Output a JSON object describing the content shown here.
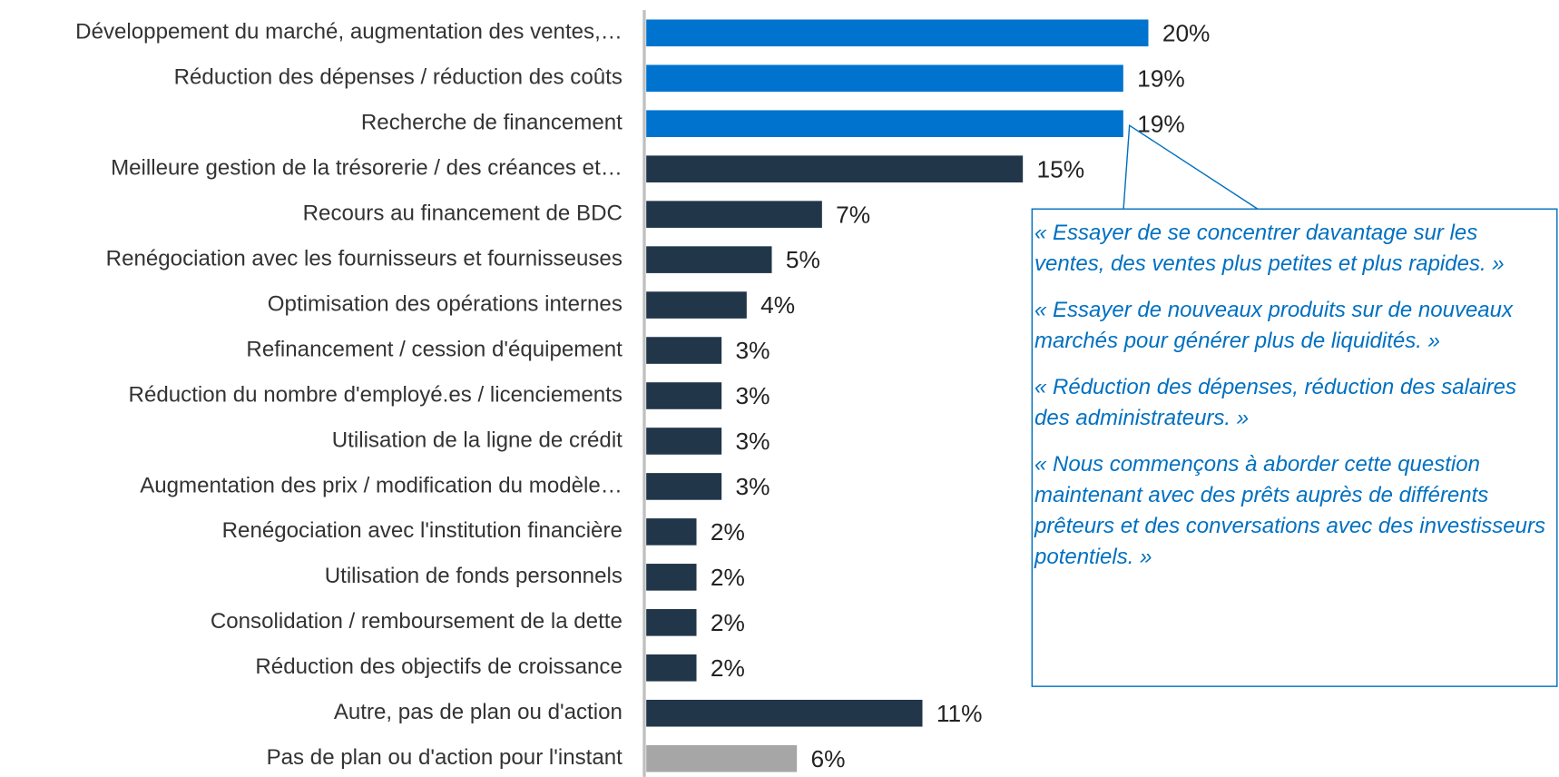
{
  "chart_data": {
    "type": "bar",
    "orientation": "horizontal",
    "categories": [
      "Développement du marché, augmentation des ventes,…",
      "Réduction des dépenses / réduction des coûts",
      "Recherche de financement",
      "Meilleure gestion de la trésorerie / des créances et…",
      "Recours au financement de BDC",
      "Renégociation avec les fournisseurs et fournisseuses",
      "Optimisation des opérations internes",
      "Refinancement / cession d'équipement",
      "Réduction du nombre d'employé.es / licenciements",
      "Utilisation de la ligne de crédit",
      "Augmentation des prix / modification du modèle…",
      "Renégociation avec l'institution financière",
      "Utilisation de fonds personnels",
      "Consolidation / remboursement de la dette",
      "Réduction des objectifs de croissance",
      "Autre, pas de plan ou d'action",
      "Pas de plan ou d'action pour l'instant"
    ],
    "values": [
      20,
      19,
      19,
      15,
      7,
      5,
      4,
      3,
      3,
      3,
      3,
      2,
      2,
      2,
      2,
      11,
      6
    ],
    "value_labels": [
      "20%",
      "19%",
      "19%",
      "15%",
      "7%",
      "5%",
      "4%",
      "3%",
      "3%",
      "3%",
      "3%",
      "2%",
      "2%",
      "2%",
      "2%",
      "11%",
      "6%"
    ],
    "colors": [
      "#0073cf",
      "#0073cf",
      "#0073cf",
      "#22364a",
      "#22364a",
      "#22364a",
      "#22364a",
      "#22364a",
      "#22364a",
      "#22364a",
      "#22364a",
      "#22364a",
      "#22364a",
      "#22364a",
      "#22364a",
      "#22364a",
      "#a6a6a6"
    ],
    "xlim": [
      0,
      20
    ],
    "annotation": {
      "quotes": [
        "« Essayer de se concentrer davantage sur les ventes, des ventes plus petites et plus rapides. »",
        "« Essayer de nouveaux produits sur de nouveaux marchés pour générer plus de liquidités. »",
        "« Réduction des dépenses, réduction des salaires des administrateurs. »",
        "« Nous commençons à aborder cette question maintenant avec des prêts auprès de différents prêteurs et des conversations avec des investisseurs potentiels. »"
      ]
    }
  }
}
